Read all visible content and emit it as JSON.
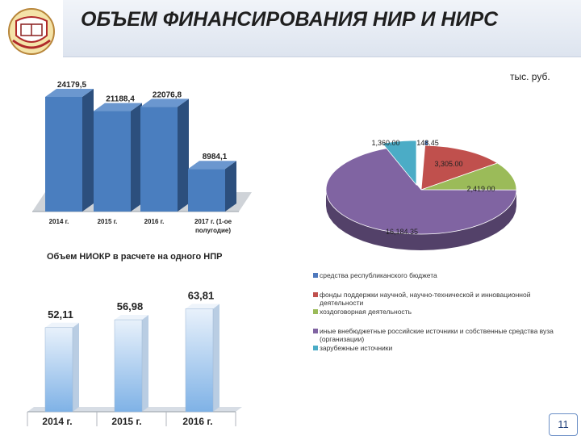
{
  "header": {
    "title": "ОБЪЕМ ФИНАНСИРОВАНИЯ НИР И НИРС"
  },
  "units": "тыс. руб.",
  "colors": {
    "bar_blue": "#4a7ebf",
    "bar_blue_side": "#2c4f7d",
    "npr_light": "#e8f1fb",
    "npr_dark": "#7fb2e6",
    "badge_border": "#6b8fc6"
  },
  "npr_section": {
    "title": "Объем НИОКР в расчете на одного НПР"
  },
  "page_number": "11",
  "chart_data": [
    {
      "type": "bar",
      "categories": [
        "2014 г.",
        "2015 г.",
        "2016 г.",
        "2017 г. (1-ое полугодие)"
      ],
      "values": [
        24179.5,
        21188.4,
        22076.8,
        8984.1
      ],
      "value_labels": [
        "24179,5",
        "21188,4",
        "22076,8",
        "8984,1"
      ],
      "title": "",
      "xlabel": "",
      "ylabel": "",
      "ylim": [
        0,
        26000
      ],
      "grid": false,
      "legend": "none"
    },
    {
      "type": "pie",
      "categories": [
        "средства республиканского бюджета",
        "фонды поддержки научной, научно-технической и инновационной деятельности",
        "хоздоговорная деятельность",
        "иные внебюджетные российские источники и собственные средства вуза (организации)",
        "зарубежные источники"
      ],
      "values": [
        148.45,
        3305.0,
        2419.0,
        16184.35,
        1360.0
      ],
      "value_labels": [
        "148.45",
        "3,305.00",
        "2,419.00",
        "16,184.35",
        "1,360.00"
      ],
      "colors": [
        "#4f79bd",
        "#c0504d",
        "#9bbb59",
        "#8064a2",
        "#4bacc6"
      ],
      "legend": "bottom"
    },
    {
      "type": "bar",
      "categories": [
        "2014 г.",
        "2015 г.",
        "2016 г."
      ],
      "values": [
        52.11,
        56.98,
        63.81
      ],
      "value_labels": [
        "52,11",
        "56,98",
        "63,81"
      ],
      "title": "",
      "xlabel": "",
      "ylabel": "",
      "ylim": [
        0,
        70
      ],
      "grid": false,
      "legend": "none"
    }
  ]
}
